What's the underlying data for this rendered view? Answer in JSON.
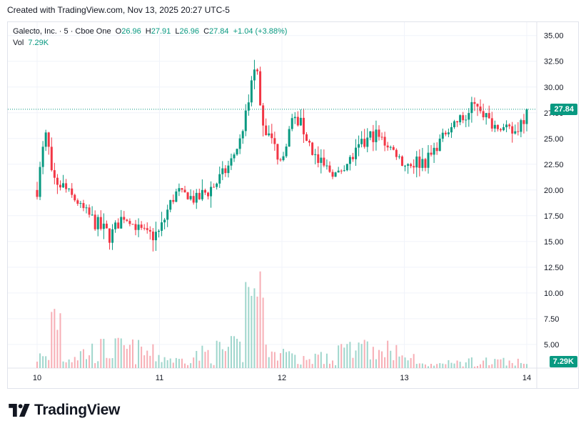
{
  "header": {
    "caption": "Created with TradingView.com, Nov 13, 2025 20:27 UTC-5"
  },
  "legend": {
    "symbol": "Galecto, Inc. · 5 · Cboe One",
    "open_label": "O",
    "open": "26.96",
    "high_label": "H",
    "high": "27.91",
    "low_label": "L",
    "low": "26.96",
    "close_label": "C",
    "close": "27.84",
    "change": "+1.04 (+3.88%)",
    "vol_label": "Vol",
    "vol": "7.29K"
  },
  "price_tag": "27.84",
  "volume_tag": "7.29K",
  "brand": {
    "name": "TradingView",
    "logo_icon": "tradingview-logo-icon"
  },
  "colors": {
    "up": "#089981",
    "down": "#f23645",
    "up_vol": "#9fd6cc",
    "down_vol": "#f7aeb5",
    "grid": "#f0f3fa",
    "text": "#131722"
  },
  "chart_data": {
    "type": "candlestick",
    "title": "",
    "xlabel": "",
    "ylabel": "",
    "x_ticks": [
      "10",
      "11",
      "12",
      "13",
      "14"
    ],
    "y_ticks": [
      "35.00",
      "32.50",
      "30.00",
      "27.50",
      "25.00",
      "22.50",
      "20.00",
      "17.50",
      "15.00",
      "12.50",
      "10.00",
      "7.50",
      "5.00"
    ],
    "ylim": [
      2.7,
      36.3
    ],
    "last_price": 27.84,
    "last_volume": "7.29K",
    "price_path_days": [
      10.0,
      10.05,
      10.08,
      10.12,
      10.2,
      10.35,
      10.5,
      10.6,
      10.7,
      10.8,
      10.9,
      11.0,
      11.08,
      11.15,
      11.3,
      11.45,
      11.55,
      11.65,
      11.72,
      11.78,
      11.85,
      12.0,
      12.08,
      12.15,
      12.3,
      12.45,
      12.6,
      12.75,
      12.9,
      13.0,
      13.2,
      13.3,
      13.4,
      13.5,
      13.6,
      13.7,
      13.8,
      13.9,
      14.0
    ],
    "price_path_values": [
      20.0,
      24.0,
      25.5,
      21.0,
      20.5,
      18.5,
      16.5,
      15.5,
      17.5,
      16.5,
      15.5,
      15.8,
      18.5,
      20.0,
      19.0,
      20.5,
      22.0,
      24.5,
      28.0,
      32.5,
      26.5,
      22.5,
      27.0,
      26.5,
      22.5,
      21.5,
      23.5,
      25.5,
      24.0,
      22.5,
      23.0,
      25.0,
      26.5,
      27.0,
      28.5,
      26.5,
      26.0,
      25.5,
      27.8
    ],
    "volume_note": "volume histogram shown beneath price"
  }
}
